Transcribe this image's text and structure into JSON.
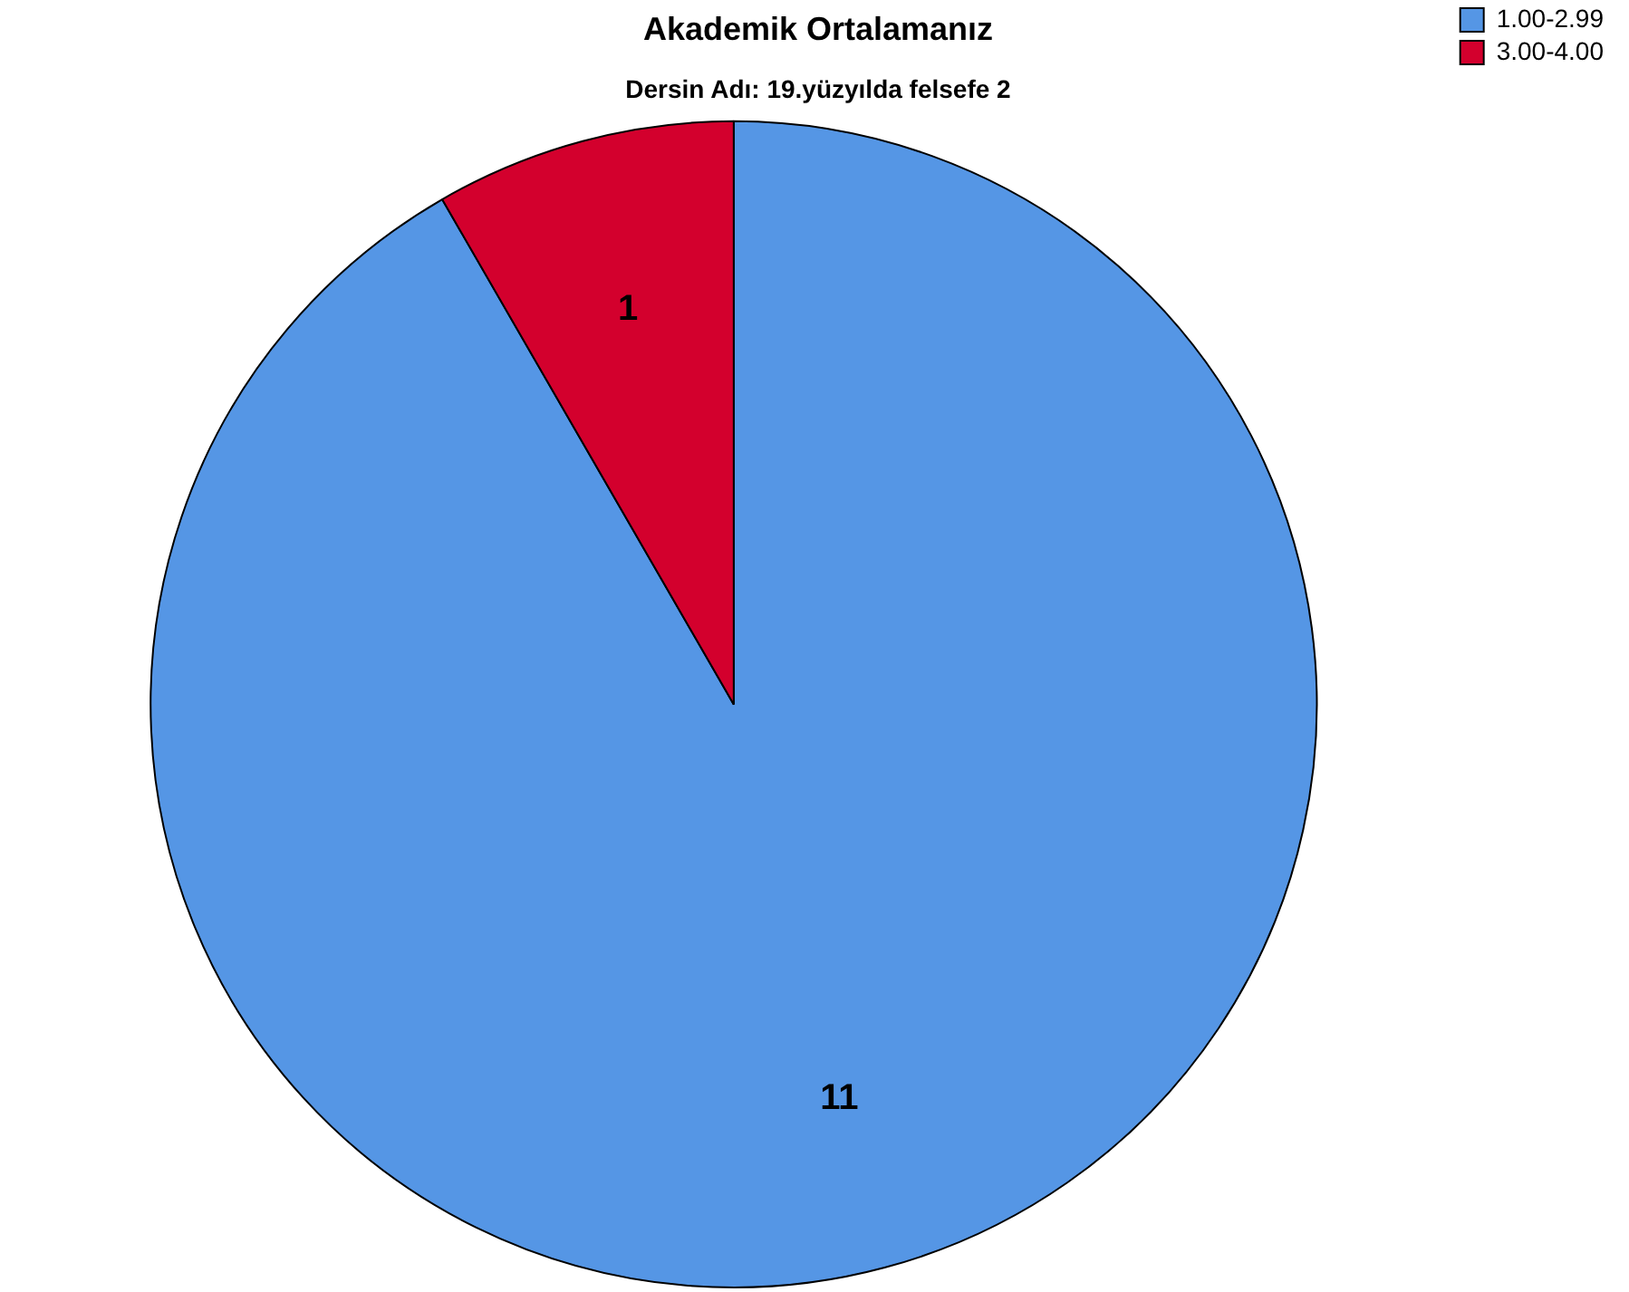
{
  "chart_data": {
    "type": "pie",
    "title": "Akademik Ortalamanız",
    "subtitle": "Dersin Adı: 19.yüzyılda felsefe 2",
    "categories": [
      "1.00-2.99",
      "3.00-4.00"
    ],
    "values": [
      11,
      1
    ],
    "colors": [
      "#5596e5",
      "#d3002d"
    ],
    "legend": "top right",
    "data_labels": true
  }
}
